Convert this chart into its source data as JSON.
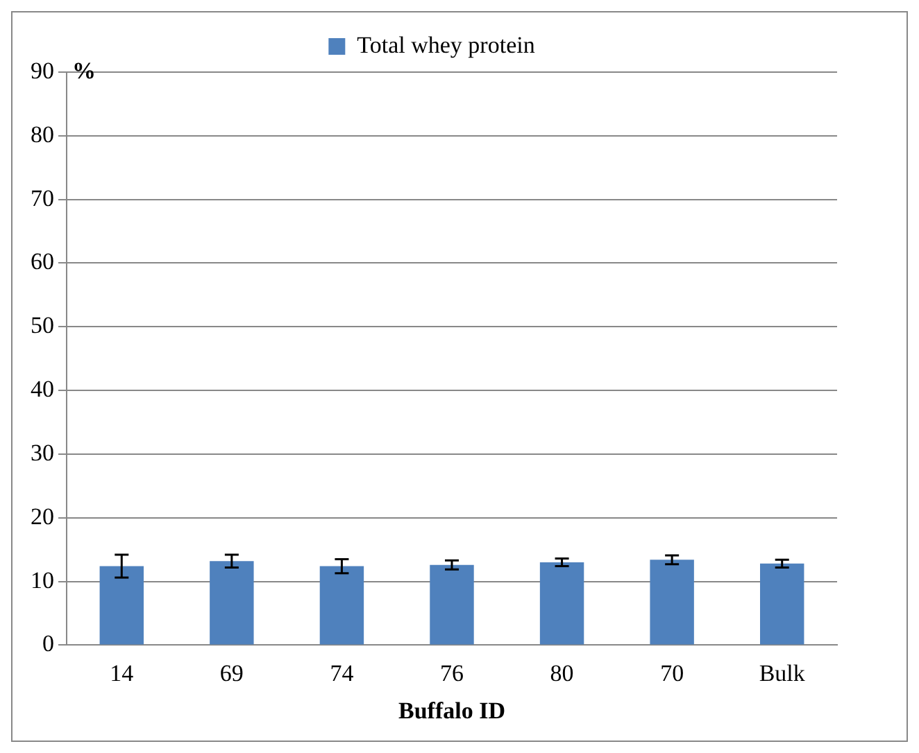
{
  "chart_data": {
    "type": "bar",
    "xlabel": "Buffalo ID",
    "ylabel": "%",
    "categories": [
      "14",
      "69",
      "74",
      "76",
      "80",
      "70",
      "Bulk"
    ],
    "series": [
      {
        "name": "Total whey protein",
        "color": "#4f81bd",
        "values": [
          12.4,
          13.2,
          12.4,
          12.6,
          13.0,
          13.4,
          12.8
        ],
        "errors": [
          1.8,
          1.0,
          1.1,
          0.7,
          0.6,
          0.7,
          0.6
        ]
      }
    ],
    "ylim": [
      0,
      90
    ],
    "yticks": [
      0,
      10,
      20,
      30,
      40,
      50,
      60,
      70,
      80,
      90
    ],
    "grid": "y",
    "legend": "top"
  }
}
